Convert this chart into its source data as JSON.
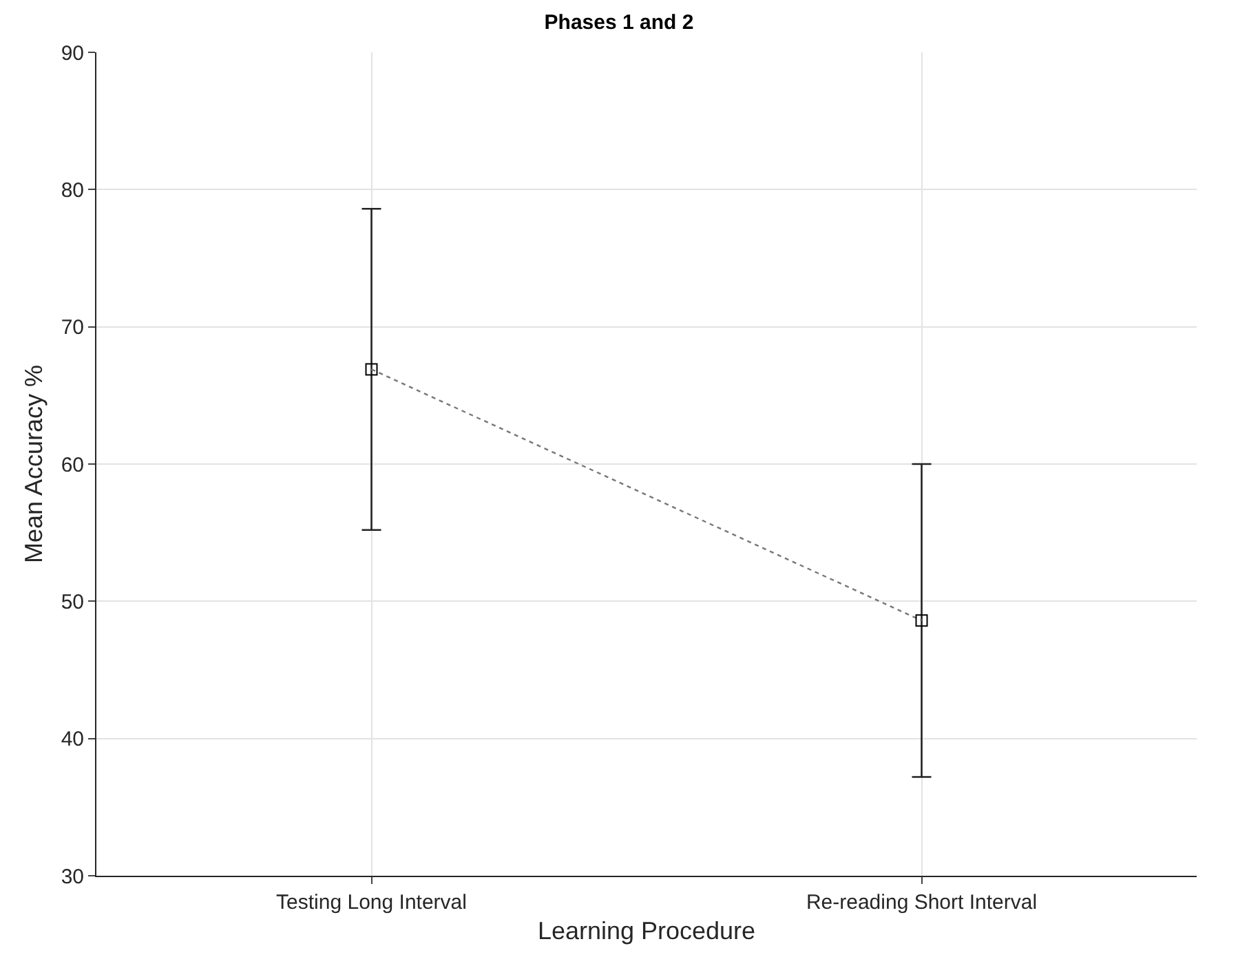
{
  "chart_data": {
    "type": "line",
    "title": "Phases 1 and 2",
    "xlabel": "Learning Procedure",
    "ylabel": "Mean Accuracy %",
    "categories": [
      "Testing Long Interval",
      "Re-reading Short Interval"
    ],
    "series": [
      {
        "color": "#000000",
        "values": [
          66.9,
          48.6
        ],
        "errors": [
          11.7,
          11.4
        ]
      }
    ],
    "ylim": [
      30,
      90
    ],
    "yticks": [
      30,
      40,
      50,
      60,
      70,
      80,
      90
    ],
    "grid": true,
    "marker": "square",
    "line_style": "dotted"
  }
}
